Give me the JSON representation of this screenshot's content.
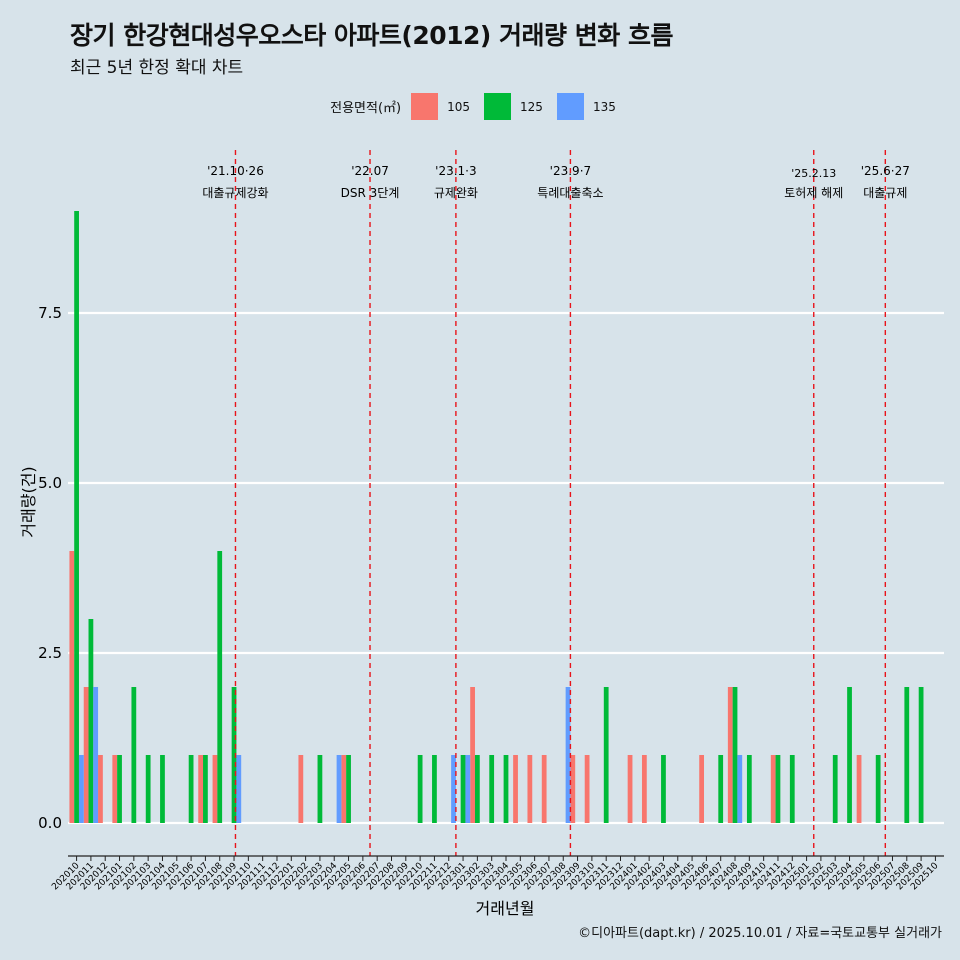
{
  "title": "장기 한강현대성우오스타 아파트(2012) 거래량 변화 흐름",
  "subtitle": "최근 5년 한정 확대 차트",
  "legend": {
    "title": "전용면적(㎡)",
    "items": [
      {
        "label": "105",
        "color": "#F8766D"
      },
      {
        "label": "125",
        "color": "#00BA38"
      },
      {
        "label": "135",
        "color": "#619CFF"
      }
    ]
  },
  "caption": "©디아파트(dapt.kr) / 2025.10.01 / 자료=국토교통부 실거래가",
  "chart_data": {
    "type": "bar",
    "stacked": false,
    "xlabel": "거래년월",
    "ylabel": "거래량(건)",
    "ylim": [
      -0.35,
      9.0
    ],
    "yticks": [
      0.0,
      2.5,
      5.0,
      7.5
    ],
    "ytick_labels": [
      "0.0",
      "2.5",
      "5.0",
      "7.5"
    ],
    "categories": [
      "202010",
      "202011",
      "202012",
      "202101",
      "202102",
      "202103",
      "202104",
      "202105",
      "202106",
      "202107",
      "202108",
      "202109",
      "202110",
      "202111",
      "202112",
      "202201",
      "202202",
      "202203",
      "202204",
      "202205",
      "202206",
      "202207",
      "202208",
      "202209",
      "202210",
      "202211",
      "202212",
      "202301",
      "202302",
      "202303",
      "202304",
      "202305",
      "202306",
      "202307",
      "202308",
      "202309",
      "202310",
      "202311",
      "202312",
      "202401",
      "202402",
      "202403",
      "202404",
      "202405",
      "202406",
      "202407",
      "202408",
      "202409",
      "202410",
      "202411",
      "202412",
      "202501",
      "202502",
      "202503",
      "202504",
      "202505",
      "202506",
      "202507",
      "202508",
      "202509",
      "202510"
    ],
    "series": [
      {
        "name": "105",
        "color": "#F8766D",
        "values": [
          4,
          2,
          1,
          1,
          0,
          0,
          0,
          0,
          0,
          1,
          1,
          0,
          0,
          0,
          0,
          0,
          1,
          0,
          0,
          1,
          0,
          0,
          0,
          0,
          0,
          0,
          0,
          0,
          2,
          0,
          0,
          1,
          1,
          1,
          0,
          1,
          1,
          0,
          0,
          1,
          1,
          0,
          0,
          0,
          1,
          0,
          2,
          0,
          0,
          1,
          0,
          0,
          0,
          0,
          0,
          1,
          0,
          0,
          0,
          0,
          0
        ]
      },
      {
        "name": "125",
        "color": "#00BA38",
        "values": [
          9,
          3,
          0,
          1,
          2,
          1,
          1,
          0,
          1,
          1,
          4,
          2,
          0,
          0,
          0,
          0,
          0,
          1,
          0,
          1,
          0,
          0,
          0,
          0,
          1,
          1,
          0,
          1,
          1,
          1,
          1,
          0,
          0,
          0,
          0,
          0,
          0,
          2,
          0,
          0,
          0,
          1,
          0,
          0,
          0,
          1,
          2,
          1,
          0,
          1,
          1,
          0,
          0,
          1,
          2,
          0,
          1,
          0,
          2,
          2,
          0
        ]
      },
      {
        "name": "135",
        "color": "#619CFF",
        "values": [
          1,
          2,
          0,
          0,
          0,
          0,
          0,
          0,
          0,
          0,
          0,
          1,
          0,
          0,
          0,
          0,
          0,
          0,
          1,
          0,
          0,
          0,
          0,
          0,
          0,
          0,
          1,
          1,
          0,
          0,
          0,
          0,
          0,
          0,
          2,
          0,
          0,
          0,
          0,
          0,
          0,
          0,
          0,
          0,
          0,
          0,
          1,
          0,
          0,
          0,
          0,
          0,
          0,
          0,
          0,
          0,
          0,
          0,
          0,
          0,
          0
        ]
      }
    ],
    "annotations": [
      {
        "line1": "'21.10·26",
        "line2": "대출규제강화",
        "index": 12,
        "offset": -0.9
      },
      {
        "line1": "'22.07",
        "line2": "DSR 3단계",
        "index": 21,
        "offset": -0.5
      },
      {
        "line1": "'23.1·3",
        "line2": "규제완화",
        "index": 27,
        "offset": -0.5
      },
      {
        "line1": "'23.9·7",
        "line2": "특례대출축소",
        "index": 35,
        "offset": -0.5
      },
      {
        "line1": "'25.2.13",
        "line2": "토허제 해제",
        "index": 52,
        "offset": -0.5
      },
      {
        "line1": "'25.6·27",
        "line2": "대출규제",
        "index": 56,
        "offset": 0.5
      }
    ]
  }
}
